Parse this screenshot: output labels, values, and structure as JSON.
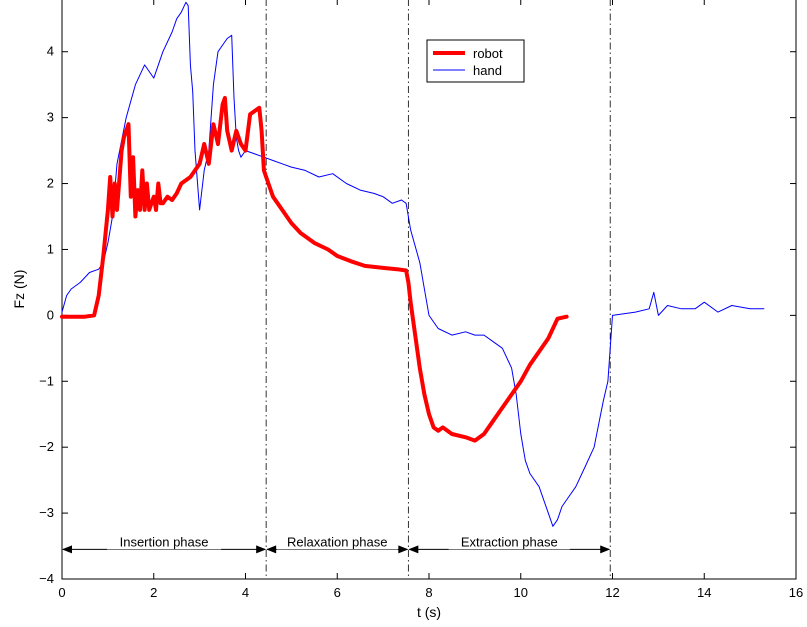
{
  "chart_data": {
    "type": "line",
    "xlabel": "t (s)",
    "ylabel": "Fz (N)",
    "xlim": [
      0,
      16
    ],
    "ylim": [
      -4,
      4.8
    ],
    "xticks": [
      0,
      2,
      4,
      6,
      8,
      10,
      12,
      14,
      16
    ],
    "yticks": [
      -4,
      -3,
      -2,
      -1,
      0,
      1,
      2,
      3,
      4
    ],
    "xtick_labels": [
      "0",
      "2",
      "4",
      "6",
      "8",
      "10",
      "12",
      "14",
      "16"
    ],
    "ytick_labels": [
      "−4",
      "−3",
      "−2",
      "−1",
      "0",
      "1",
      "2",
      "3",
      "4"
    ],
    "grid": false,
    "legend_position": "top-right",
    "series": [
      {
        "name": "robot",
        "color": "#ff0000",
        "x": [
          0,
          0.5,
          0.7,
          0.8,
          0.9,
          1.0,
          1.05,
          1.1,
          1.15,
          1.2,
          1.3,
          1.35,
          1.45,
          1.5,
          1.55,
          1.6,
          1.65,
          1.7,
          1.75,
          1.8,
          1.85,
          1.9,
          1.95,
          2.0,
          2.05,
          2.1,
          2.15,
          2.2,
          2.3,
          2.4,
          2.5,
          2.6,
          2.8,
          3.0,
          3.1,
          3.2,
          3.3,
          3.4,
          3.5,
          3.55,
          3.6,
          3.7,
          3.8,
          3.9,
          4.0,
          4.1,
          4.2,
          4.3,
          4.35,
          4.4,
          4.5,
          4.6,
          4.8,
          5.0,
          5.2,
          5.5,
          5.8,
          6.0,
          6.3,
          6.6,
          7.0,
          7.3,
          7.5,
          7.55,
          7.6,
          7.7,
          7.8,
          7.9,
          8.0,
          8.1,
          8.2,
          8.3,
          8.5,
          8.8,
          9.0,
          9.2,
          9.4,
          9.6,
          9.8,
          10.0,
          10.2,
          10.4,
          10.6,
          10.8,
          11.0
        ],
        "y": [
          -0.02,
          -0.02,
          0.0,
          0.3,
          0.9,
          1.6,
          2.1,
          1.5,
          2.0,
          1.6,
          2.5,
          2.7,
          2.9,
          1.8,
          2.4,
          1.5,
          1.9,
          1.6,
          2.2,
          1.6,
          2.0,
          1.6,
          1.7,
          1.8,
          1.6,
          2.0,
          1.7,
          1.7,
          1.8,
          1.75,
          1.85,
          2.0,
          2.1,
          2.3,
          2.6,
          2.3,
          2.9,
          2.6,
          3.2,
          3.3,
          2.8,
          2.5,
          2.8,
          2.6,
          2.5,
          3.05,
          3.1,
          3.15,
          2.8,
          2.2,
          2.0,
          1.8,
          1.6,
          1.4,
          1.25,
          1.1,
          1.0,
          0.9,
          0.82,
          0.75,
          0.72,
          0.7,
          0.68,
          0.5,
          0.2,
          -0.3,
          -0.8,
          -1.2,
          -1.5,
          -1.7,
          -1.75,
          -1.7,
          -1.8,
          -1.85,
          -1.9,
          -1.8,
          -1.6,
          -1.4,
          -1.2,
          -1.0,
          -0.75,
          -0.55,
          -0.35,
          -0.05,
          -0.02
        ]
      },
      {
        "name": "hand",
        "color": "#0000ff",
        "x": [
          0,
          0.1,
          0.2,
          0.4,
          0.6,
          0.8,
          0.9,
          1.0,
          1.1,
          1.2,
          1.4,
          1.6,
          1.8,
          2.0,
          2.2,
          2.4,
          2.5,
          2.6,
          2.7,
          2.75,
          2.8,
          2.85,
          2.9,
          3.0,
          3.1,
          3.2,
          3.3,
          3.4,
          3.5,
          3.6,
          3.7,
          3.75,
          3.8,
          3.85,
          3.9,
          4.0,
          4.2,
          4.4,
          4.6,
          4.8,
          5.0,
          5.3,
          5.6,
          5.9,
          6.2,
          6.5,
          6.8,
          7.0,
          7.2,
          7.4,
          7.5,
          7.6,
          7.8,
          8.0,
          8.2,
          8.5,
          8.8,
          9.0,
          9.2,
          9.4,
          9.6,
          9.8,
          9.9,
          10.0,
          10.1,
          10.2,
          10.4,
          10.6,
          10.7,
          10.8,
          10.9,
          11.0,
          11.2,
          11.4,
          11.6,
          11.8,
          11.9,
          11.95,
          12.0,
          12.5,
          12.8,
          12.9,
          13.0,
          13.2,
          13.5,
          13.8,
          14.0,
          14.3,
          14.6,
          15.0,
          15.3
        ],
        "y": [
          0.05,
          0.3,
          0.4,
          0.5,
          0.65,
          0.7,
          0.8,
          1.1,
          1.5,
          2.3,
          3.0,
          3.5,
          3.8,
          3.6,
          4.0,
          4.3,
          4.5,
          4.6,
          4.75,
          4.7,
          3.8,
          3.4,
          2.5,
          1.6,
          2.2,
          2.5,
          3.5,
          4.0,
          4.1,
          4.2,
          4.25,
          3.3,
          2.7,
          2.5,
          2.4,
          2.5,
          2.45,
          2.4,
          2.35,
          2.3,
          2.25,
          2.2,
          2.1,
          2.15,
          2.0,
          1.9,
          1.85,
          1.8,
          1.7,
          1.75,
          1.7,
          1.3,
          0.8,
          0.0,
          -0.2,
          -0.3,
          -0.25,
          -0.3,
          -0.3,
          -0.4,
          -0.5,
          -0.8,
          -1.2,
          -1.8,
          -2.2,
          -2.4,
          -2.6,
          -3.0,
          -3.2,
          -3.1,
          -2.9,
          -2.8,
          -2.6,
          -2.3,
          -2.0,
          -1.3,
          -1.0,
          -0.5,
          0.0,
          0.05,
          0.1,
          0.35,
          0.0,
          0.15,
          0.1,
          0.1,
          0.2,
          0.05,
          0.15,
          0.1,
          0.1
        ]
      }
    ],
    "vlines": [
      4.45,
      7.55,
      11.95
    ],
    "phases": [
      {
        "label": "Insertion phase",
        "x0": 0,
        "x1": 4.45
      },
      {
        "label": "Relaxation phase",
        "x0": 4.45,
        "x1": 7.55
      },
      {
        "label": "Extraction phase",
        "x0": 7.55,
        "x1": 11.95
      }
    ],
    "phase_arrow_y": -3.55
  }
}
